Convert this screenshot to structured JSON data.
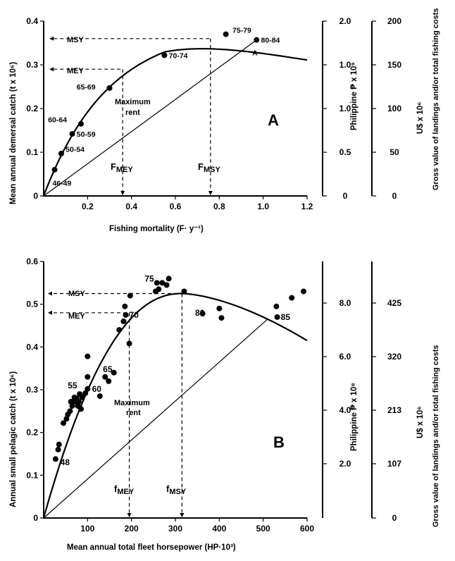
{
  "chart_data": [
    {
      "type": "line",
      "panel_label": "A",
      "xlabel": "Fishing mortality (F· y⁻¹)",
      "ylabel": "Mean annual demersal catch (t x 10⁶)",
      "right_axis_1_label": "Philippine ₱ x 10⁹",
      "right_axis_2_label": "U$ x 10⁶",
      "right_axis_2_sublabel": "Gross value of landings and/or total fishing costs",
      "xlim": [
        0,
        1.2
      ],
      "ylim": [
        0,
        0.4
      ],
      "x_ticks": [
        "0.2",
        "0.4",
        "0.6",
        "0.8",
        "1.0",
        "1.2"
      ],
      "y_ticks": [
        "0",
        "0.1",
        "0.2",
        "0.3",
        "0.4"
      ],
      "right1_ticks": [
        "0",
        "0.5",
        "1.0",
        "1.0",
        "2.0"
      ],
      "right2_ticks": [
        "0",
        "50",
        "100",
        "150",
        "200"
      ],
      "points": [
        {
          "x": 0.05,
          "y": 0.06
        },
        {
          "x": 0.08,
          "y": 0.097
        },
        {
          "x": 0.13,
          "y": 0.142
        },
        {
          "x": 0.17,
          "y": 0.165
        },
        {
          "x": 0.3,
          "y": 0.247
        },
        {
          "x": 0.55,
          "y": 0.322
        },
        {
          "x": 0.83,
          "y": 0.37
        },
        {
          "x": 0.97,
          "y": 0.357
        }
      ],
      "point_labels": [
        {
          "text": "46-49",
          "x": 0.04,
          "y": 0.03
        },
        {
          "text": "50-54",
          "x": 0.1,
          "y": 0.107
        },
        {
          "text": "50-59",
          "x": 0.15,
          "y": 0.142
        },
        {
          "text": "60-64",
          "x": 0.02,
          "y": 0.175
        },
        {
          "text": "65-69",
          "x": 0.15,
          "y": 0.25
        },
        {
          "text": "70-74",
          "x": 0.57,
          "y": 0.322
        },
        {
          "text": "75-79",
          "x": 0.86,
          "y": 0.38
        },
        {
          "text": "80-84",
          "x": 0.99,
          "y": 0.357
        },
        {
          "text": "A",
          "x": 0.95,
          "y": 0.328
        }
      ],
      "msy_label": "MSY",
      "mey_label": "MEY",
      "fmey_label": "F",
      "fmey_sub": "MEY",
      "fmsy_label": "F",
      "fmsy_sub": "MSY",
      "rent_label_1": "Maximum",
      "rent_label_2": "rent",
      "f_mey": 0.36,
      "f_msy": 0.76,
      "msy": 0.36,
      "mey": 0.29,
      "curve": {
        "rmax": 0.95,
        "k": 2.3
      },
      "cost_line": [
        [
          0,
          0
        ],
        [
          0.97,
          0.357
        ]
      ]
    },
    {
      "type": "line",
      "panel_label": "B",
      "xlabel": "Mean annual total fleet horsepower (HP·10³)",
      "ylabel": "Annual small pelagic catch (t x 10⁶)",
      "right_axis_1_label": "Philippine ₱ x 10⁸",
      "right_axis_2_label": "U$ x 10⁶",
      "right_axis_2_sublabel": "Gross value of landings and/or total fishing costs",
      "xlim": [
        0,
        600
      ],
      "ylim": [
        0,
        0.6
      ],
      "x_ticks": [
        "100",
        "200",
        "300",
        "400",
        "500",
        "600"
      ],
      "y_ticks": [
        "0",
        "0.1",
        "0.2",
        "0.3",
        "0.4",
        "0.5",
        "0.6"
      ],
      "right1_ticks": [
        "2.0",
        "4.0",
        "6.0",
        "8.0"
      ],
      "right2_ticks": [
        "0",
        "107",
        "213",
        "320",
        "425"
      ],
      "points": [
        {
          "x": 27,
          "y": 0.138
        },
        {
          "x": 33,
          "y": 0.16
        },
        {
          "x": 35,
          "y": 0.172
        },
        {
          "x": 45,
          "y": 0.222
        },
        {
          "x": 52,
          "y": 0.232
        },
        {
          "x": 55,
          "y": 0.242
        },
        {
          "x": 60,
          "y": 0.25
        },
        {
          "x": 62,
          "y": 0.272
        },
        {
          "x": 65,
          "y": 0.262
        },
        {
          "x": 70,
          "y": 0.282
        },
        {
          "x": 72,
          "y": 0.272
        },
        {
          "x": 75,
          "y": 0.28
        },
        {
          "x": 78,
          "y": 0.262
        },
        {
          "x": 80,
          "y": 0.272
        },
        {
          "x": 82,
          "y": 0.29
        },
        {
          "x": 85,
          "y": 0.255
        },
        {
          "x": 88,
          "y": 0.282
        },
        {
          "x": 95,
          "y": 0.292
        },
        {
          "x": 100,
          "y": 0.302
        },
        {
          "x": 100,
          "y": 0.33
        },
        {
          "x": 100,
          "y": 0.378
        },
        {
          "x": 128,
          "y": 0.285
        },
        {
          "x": 140,
          "y": 0.33
        },
        {
          "x": 148,
          "y": 0.32
        },
        {
          "x": 160,
          "y": 0.34
        },
        {
          "x": 172,
          "y": 0.44
        },
        {
          "x": 182,
          "y": 0.46
        },
        {
          "x": 185,
          "y": 0.495
        },
        {
          "x": 187,
          "y": 0.475
        },
        {
          "x": 195,
          "y": 0.408
        },
        {
          "x": 197,
          "y": 0.52
        },
        {
          "x": 255,
          "y": 0.53
        },
        {
          "x": 258,
          "y": 0.55
        },
        {
          "x": 262,
          "y": 0.535
        },
        {
          "x": 270,
          "y": 0.55
        },
        {
          "x": 280,
          "y": 0.545
        },
        {
          "x": 285,
          "y": 0.56
        },
        {
          "x": 320,
          "y": 0.53
        },
        {
          "x": 362,
          "y": 0.478
        },
        {
          "x": 400,
          "y": 0.49
        },
        {
          "x": 405,
          "y": 0.468
        },
        {
          "x": 530,
          "y": 0.495
        },
        {
          "x": 532,
          "y": 0.47
        },
        {
          "x": 565,
          "y": 0.515
        },
        {
          "x": 592,
          "y": 0.53
        }
      ],
      "point_labels": [
        {
          "text": "48",
          "x": 38,
          "y": 0.13
        },
        {
          "text": "55",
          "x": 55,
          "y": 0.31
        },
        {
          "text": "60",
          "x": 110,
          "y": 0.302
        },
        {
          "text": "65",
          "x": 135,
          "y": 0.348
        },
        {
          "text": "70",
          "x": 195,
          "y": 0.475
        },
        {
          "text": "75",
          "x": 230,
          "y": 0.56
        },
        {
          "text": "80",
          "x": 345,
          "y": 0.48
        },
        {
          "text": "85",
          "x": 540,
          "y": 0.47
        }
      ],
      "msy_label": "MSY",
      "mey_label": "MEY",
      "fmey_label": "f",
      "fmey_sub": "MEY",
      "fmsy_label": "f",
      "fmsy_sub": "MSY",
      "rent_label_1": "Maximum",
      "rent_label_2": "rent",
      "f_mey": 195,
      "f_msy": 315,
      "msy": 0.525,
      "mey": 0.48,
      "curve": {
        "a": 0.0033,
        "b": 5.2e-06
      },
      "cost_line": [
        [
          0,
          0
        ],
        [
          510,
          0.465
        ]
      ]
    }
  ]
}
